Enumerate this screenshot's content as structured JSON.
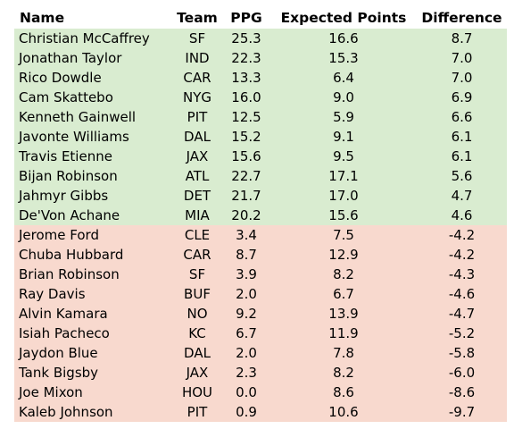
{
  "table": {
    "headers": [
      "Name",
      "Team",
      "PPG",
      "Expected Points",
      "Difference"
    ],
    "colors": {
      "positive_row": "#d9ecd0",
      "negative_row": "#f8d9ce"
    },
    "rows": [
      [
        "Christian McCaffrey",
        "SF",
        "25.3",
        "16.6",
        "8.7"
      ],
      [
        "Jonathan Taylor",
        "IND",
        "22.3",
        "15.3",
        "7.0"
      ],
      [
        "Rico Dowdle",
        "CAR",
        "13.3",
        "6.4",
        "7.0"
      ],
      [
        "Cam Skattebo",
        "NYG",
        "16.0",
        "9.0",
        "6.9"
      ],
      [
        "Kenneth Gainwell",
        "PIT",
        "12.5",
        "5.9",
        "6.6"
      ],
      [
        "Javonte Williams",
        "DAL",
        "15.2",
        "9.1",
        "6.1"
      ],
      [
        "Travis Etienne",
        "JAX",
        "15.6",
        "9.5",
        "6.1"
      ],
      [
        "Bijan Robinson",
        "ATL",
        "22.7",
        "17.1",
        "5.6"
      ],
      [
        "Jahmyr Gibbs",
        "DET",
        "21.7",
        "17.0",
        "4.7"
      ],
      [
        "De'Von Achane",
        "MIA",
        "20.2",
        "15.6",
        "4.6"
      ],
      [
        "Jerome Ford",
        "CLE",
        "3.4",
        "7.5",
        "-4.2"
      ],
      [
        "Chuba Hubbard",
        "CAR",
        "8.7",
        "12.9",
        "-4.2"
      ],
      [
        "Brian Robinson",
        "SF",
        "3.9",
        "8.2",
        "-4.3"
      ],
      [
        "Ray Davis",
        "BUF",
        "2.0",
        "6.7",
        "-4.6"
      ],
      [
        "Alvin Kamara",
        "NO",
        "9.2",
        "13.9",
        "-4.7"
      ],
      [
        "Isiah Pacheco",
        "KC",
        "6.7",
        "11.9",
        "-5.2"
      ],
      [
        "Jaydon Blue",
        "DAL",
        "2.0",
        "7.8",
        "-5.8"
      ],
      [
        "Tank Bigsby",
        "JAX",
        "2.3",
        "8.2",
        "-6.0"
      ],
      [
        "Joe Mixon",
        "HOU",
        "0.0",
        "8.6",
        "-8.6"
      ],
      [
        "Kaleb Johnson",
        "PIT",
        "0.9",
        "10.6",
        "-9.7"
      ]
    ]
  }
}
